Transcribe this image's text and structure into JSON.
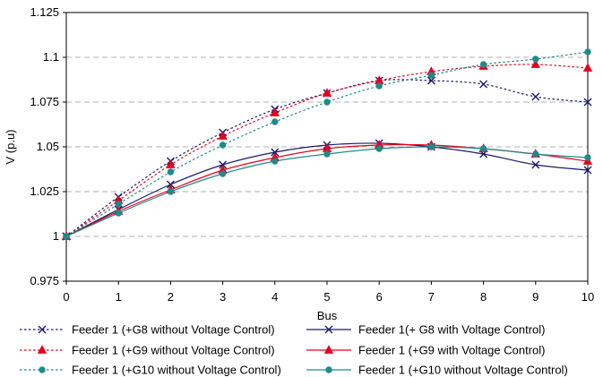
{
  "chart_data": {
    "type": "line",
    "title": "",
    "xlabel": "Bus",
    "ylabel": "V (p.u)",
    "xlim": [
      0,
      10
    ],
    "ylim": [
      0.975,
      1.125
    ],
    "x_ticks": [
      0,
      1,
      2,
      3,
      4,
      5,
      6,
      7,
      8,
      9,
      10
    ],
    "y_ticks": [
      0.975,
      1,
      1.025,
      1.05,
      1.075,
      1.1,
      1.125
    ],
    "grid": "horizontal-dashed",
    "legend_position": "bottom",
    "x": [
      0,
      1,
      2,
      3,
      4,
      5,
      6,
      7,
      8,
      9,
      10
    ],
    "series": [
      {
        "name": "Feeder 1 (+G8 without Voltage Control)",
        "color": "#1a1a6e",
        "style": "dotted",
        "marker": "x",
        "values": [
          1.0,
          1.022,
          1.042,
          1.058,
          1.071,
          1.08,
          1.087,
          1.087,
          1.085,
          1.078,
          1.075
        ]
      },
      {
        "name": "Feeder 1(+ G8 with Voltage Control)",
        "color": "#1a1a6e",
        "style": "solid",
        "marker": "x",
        "values": [
          1.0,
          1.015,
          1.029,
          1.04,
          1.047,
          1.051,
          1.052,
          1.05,
          1.046,
          1.04,
          1.037
        ]
      },
      {
        "name": "Feeder 1 (+G9 without Voltage Control)",
        "color": "#e8001c",
        "style": "dotted",
        "marker": "triangle",
        "values": [
          1.0,
          1.02,
          1.04,
          1.056,
          1.069,
          1.08,
          1.087,
          1.092,
          1.095,
          1.096,
          1.094
        ]
      },
      {
        "name": "Feeder 1 (+G9 with Voltage Control)",
        "color": "#e8001c",
        "style": "solid",
        "marker": "triangle",
        "values": [
          1.0,
          1.014,
          1.026,
          1.037,
          1.044,
          1.049,
          1.051,
          1.051,
          1.049,
          1.046,
          1.042
        ]
      },
      {
        "name": "Feeder 1 (+G10 without Voltage Control)",
        "color": "#1f8a8a",
        "style": "dotted",
        "marker": "circle",
        "values": [
          1.0,
          1.018,
          1.036,
          1.051,
          1.064,
          1.075,
          1.084,
          1.09,
          1.096,
          1.099,
          1.103
        ]
      },
      {
        "name": "Feeder 1 (+G10 without Voltage Control)",
        "color": "#1f8a8a",
        "style": "solid",
        "marker": "circle",
        "values": [
          1.0,
          1.013,
          1.025,
          1.035,
          1.042,
          1.046,
          1.049,
          1.05,
          1.049,
          1.046,
          1.044
        ]
      }
    ]
  }
}
